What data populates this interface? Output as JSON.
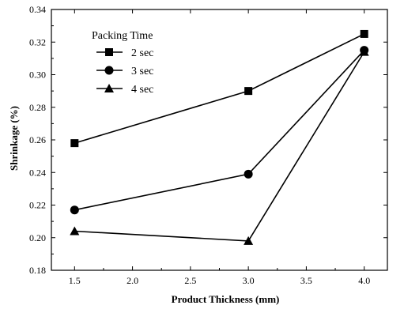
{
  "chart_data": {
    "type": "line",
    "title": "",
    "xlabel": "Product Thickness (mm)",
    "ylabel": "Shrinkage (%)",
    "x": [
      1.5,
      3.0,
      4.0
    ],
    "xlim": [
      1.3,
      4.2
    ],
    "ylim": [
      0.18,
      0.34
    ],
    "xticks": [
      "1.5",
      "2.0",
      "2.5",
      "3.0",
      "3.5",
      "4.0"
    ],
    "yticks": [
      "0.18",
      "0.20",
      "0.22",
      "0.24",
      "0.26",
      "0.28",
      "0.30",
      "0.32",
      "0.34"
    ],
    "grid": false,
    "legend": {
      "title": "Packing Time",
      "position": "top-left"
    },
    "series": [
      {
        "name": "2 sec",
        "marker": "square",
        "values": [
          0.258,
          0.29,
          0.325
        ]
      },
      {
        "name": "3 sec",
        "marker": "circle",
        "values": [
          0.217,
          0.239,
          0.315
        ]
      },
      {
        "name": "4 sec",
        "marker": "triangle",
        "values": [
          0.204,
          0.198,
          0.314
        ]
      }
    ]
  }
}
